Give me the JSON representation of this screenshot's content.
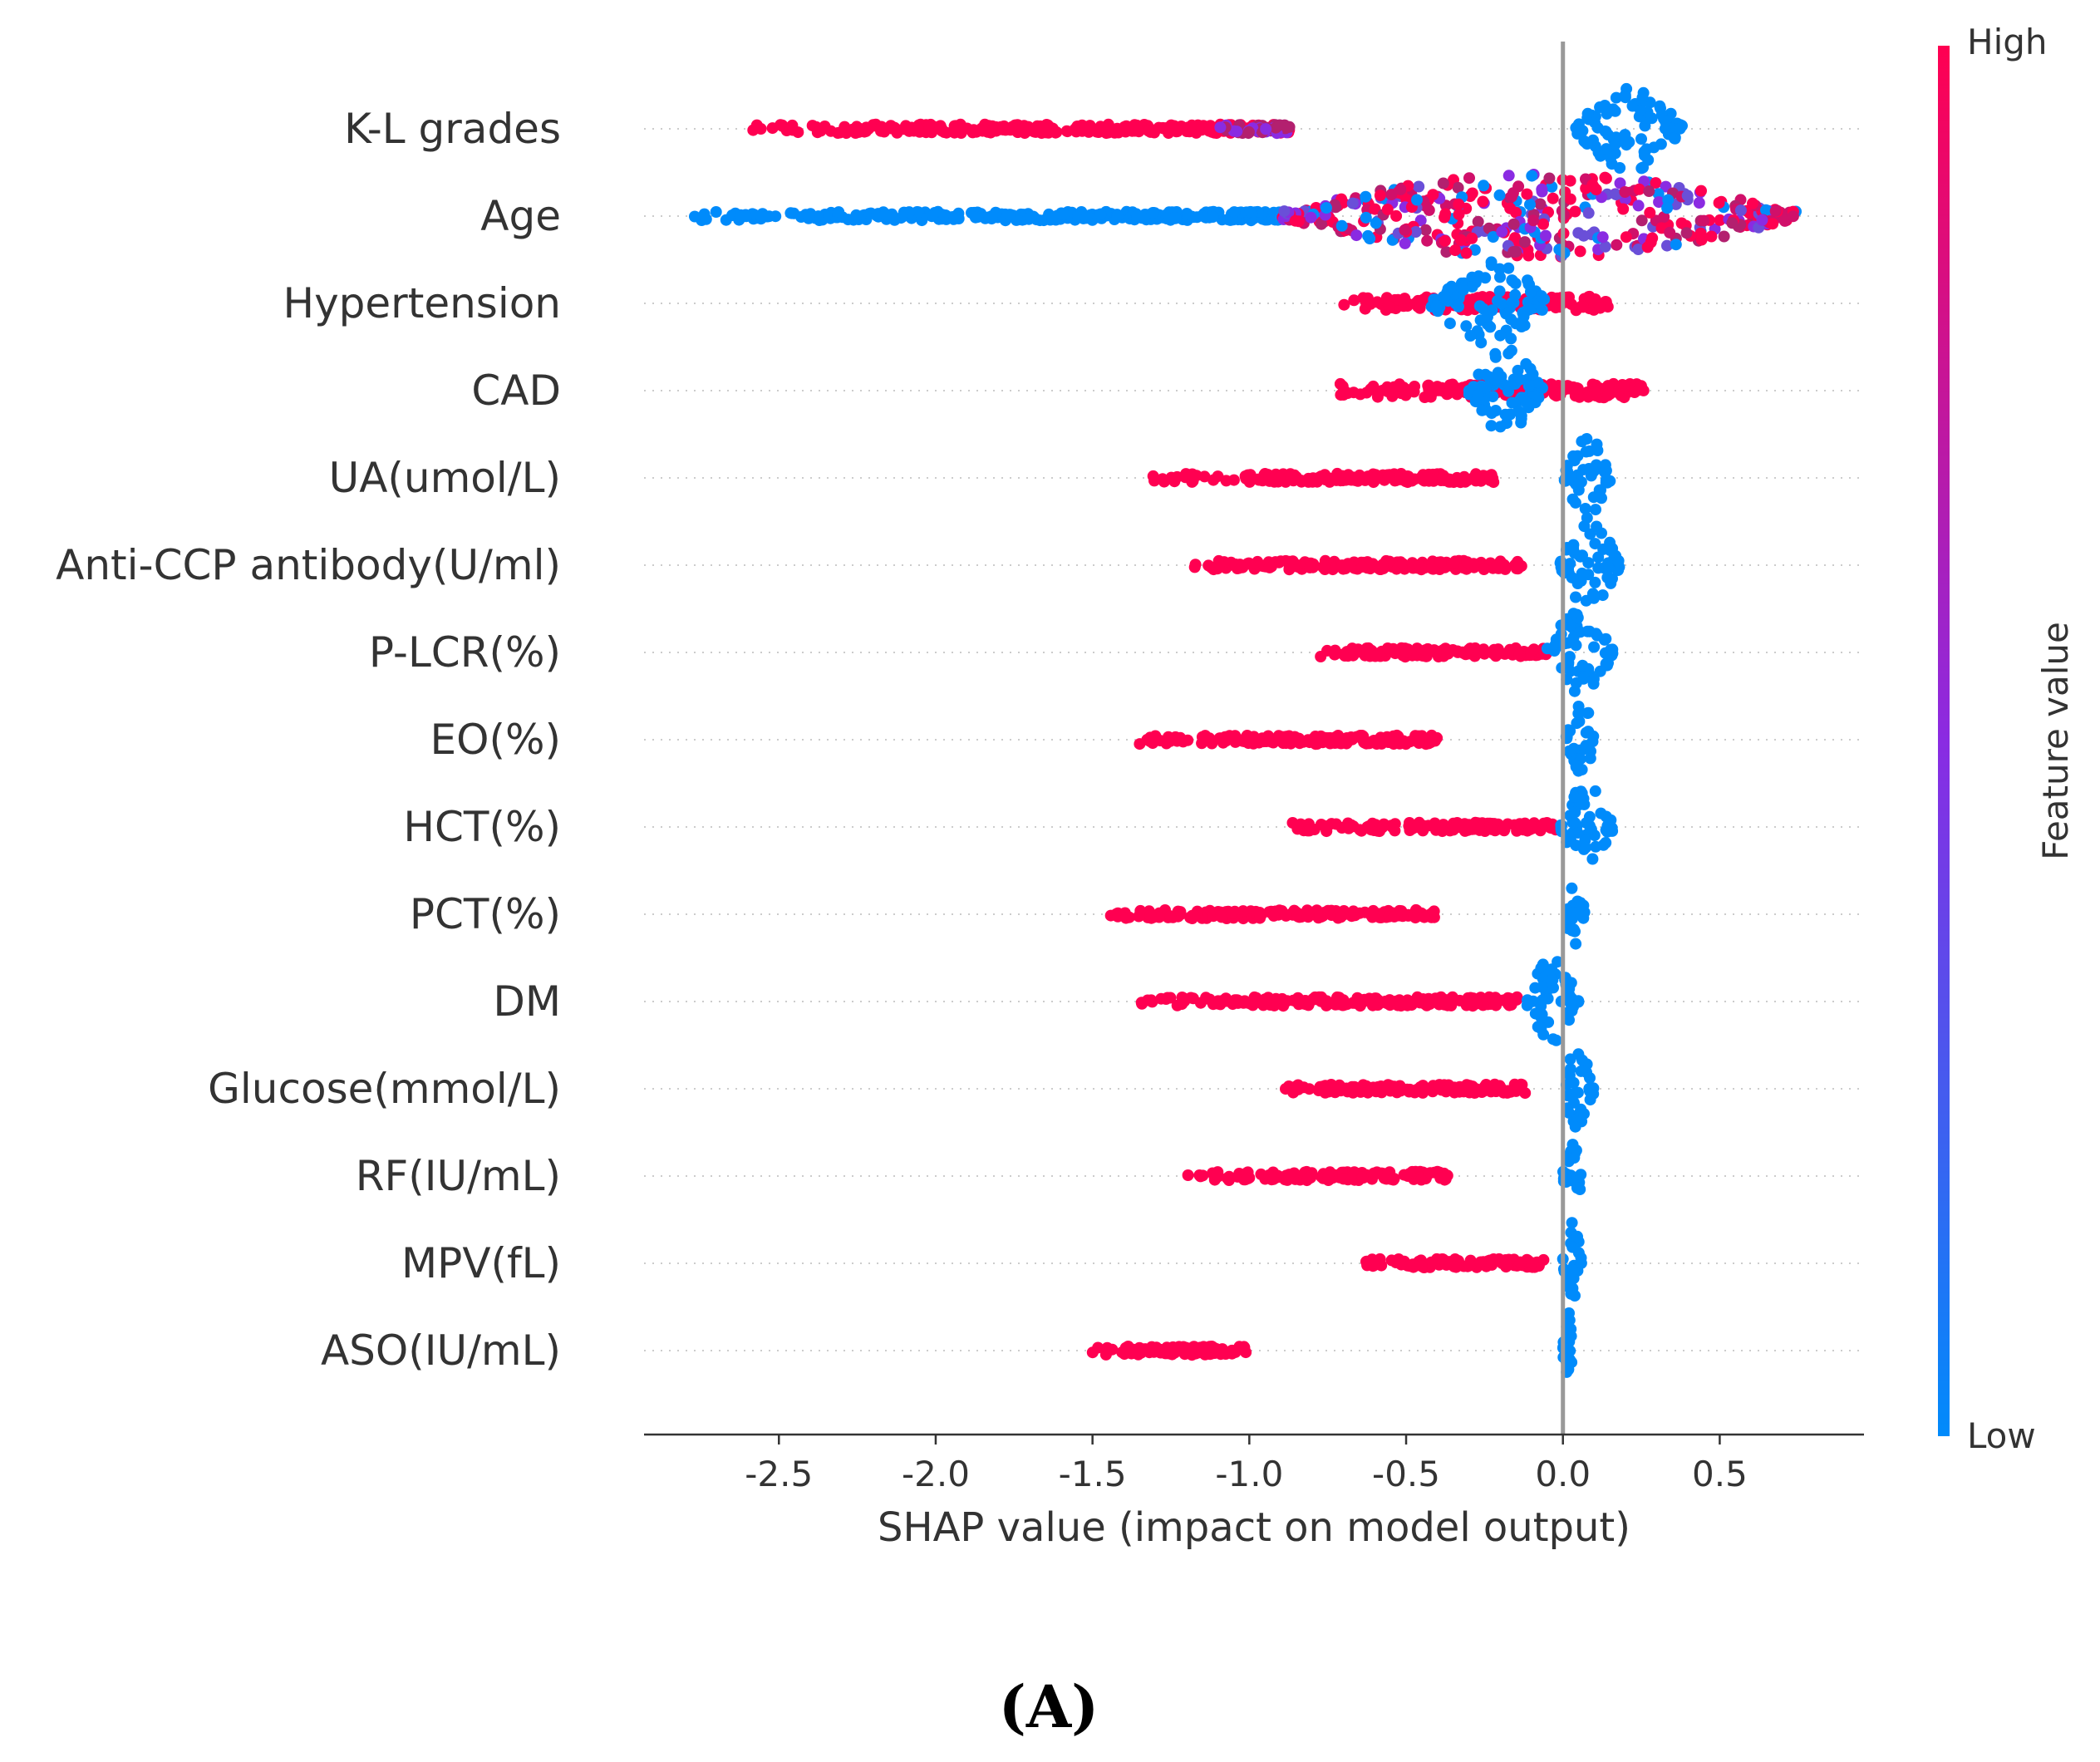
{
  "chart_data": {
    "type": "scatter",
    "subtype": "shap-beeswarm",
    "title": "",
    "xlabel": "SHAP value (impact on model output)",
    "ylabel": "",
    "xlim": [
      -2.93,
      0.96
    ],
    "xticks": [
      -2.5,
      -2.0,
      -1.5,
      -1.0,
      -0.5,
      0.0,
      0.5
    ],
    "xtick_labels": [
      "-2.5",
      "-2.0",
      "-1.5",
      "-1.0",
      "-0.5",
      "0.0",
      "0.5"
    ],
    "grid": false,
    "colorbar": {
      "title": "Feature value",
      "high_label": "High",
      "low_label": "Low",
      "high_color": "#ff0051",
      "mid_color": "#8a2be2",
      "low_color": "#008bfb"
    },
    "features": [
      {
        "name": "K-L grades",
        "points": [
          {
            "x_min": -2.6,
            "x_max": -0.87,
            "value": "high",
            "max_width": 0.05
          },
          {
            "x_min": -1.1,
            "x_max": -0.87,
            "value": "mid",
            "max_width": 0.05
          },
          {
            "x_min": 0.04,
            "x_max": 0.38,
            "value": "low",
            "max_width": 0.48
          }
        ]
      },
      {
        "name": "Age",
        "points": [
          {
            "x_min": -2.78,
            "x_max": -0.9,
            "value": "low",
            "max_width": 0.05
          },
          {
            "x_min": -0.9,
            "x_max": 0.75,
            "value": "mixed",
            "max_width": 0.48
          }
        ]
      },
      {
        "name": "Hypertension",
        "points": [
          {
            "x_min": -0.7,
            "x_max": 0.15,
            "value": "high",
            "max_width": 0.08
          },
          {
            "x_min": -0.42,
            "x_max": -0.05,
            "value": "low",
            "max_width": 0.48
          }
        ]
      },
      {
        "name": "CAD",
        "points": [
          {
            "x_min": -0.77,
            "x_max": 0.26,
            "value": "high",
            "max_width": 0.08
          },
          {
            "x_min": -0.3,
            "x_max": -0.06,
            "value": "low",
            "max_width": 0.48
          }
        ]
      },
      {
        "name": "UA(umol/L)",
        "points": [
          {
            "x_min": -1.32,
            "x_max": -0.22,
            "value": "high",
            "max_width": 0.05
          },
          {
            "x_min": 0.0,
            "x_max": 0.15,
            "value": "low",
            "max_width": 0.48
          }
        ]
      },
      {
        "name": "Anti-CCP antibody(U/ml)",
        "points": [
          {
            "x_min": -1.19,
            "x_max": -0.13,
            "value": "high",
            "max_width": 0.05
          },
          {
            "x_min": -0.01,
            "x_max": 0.18,
            "value": "low",
            "max_width": 0.48
          }
        ]
      },
      {
        "name": "P-LCR(%)",
        "points": [
          {
            "x_min": -0.78,
            "x_max": -0.05,
            "value": "high",
            "max_width": 0.05
          },
          {
            "x_min": -0.05,
            "x_max": 0.16,
            "value": "low",
            "max_width": 0.48
          }
        ]
      },
      {
        "name": "EO(%)",
        "points": [
          {
            "x_min": -1.37,
            "x_max": -0.4,
            "value": "high",
            "max_width": 0.05
          },
          {
            "x_min": 0.01,
            "x_max": 0.1,
            "value": "low",
            "max_width": 0.48
          }
        ]
      },
      {
        "name": "HCT(%)",
        "points": [
          {
            "x_min": -0.87,
            "x_max": -0.02,
            "value": "high",
            "max_width": 0.05
          },
          {
            "x_min": -0.01,
            "x_max": 0.16,
            "value": "low",
            "max_width": 0.48
          }
        ]
      },
      {
        "name": "PCT(%)",
        "points": [
          {
            "x_min": -1.46,
            "x_max": -0.41,
            "value": "high",
            "max_width": 0.05
          },
          {
            "x_min": 0.01,
            "x_max": 0.07,
            "value": "low",
            "max_width": 0.48
          }
        ]
      },
      {
        "name": "DM",
        "points": [
          {
            "x_min": -1.35,
            "x_max": -0.14,
            "value": "high",
            "max_width": 0.05
          },
          {
            "x_min": -0.12,
            "x_max": 0.05,
            "value": "low",
            "max_width": 0.48
          }
        ]
      },
      {
        "name": "Glucose(mmol/L)",
        "points": [
          {
            "x_min": -0.91,
            "x_max": -0.12,
            "value": "high",
            "max_width": 0.05
          },
          {
            "x_min": 0.0,
            "x_max": 0.1,
            "value": "low",
            "max_width": 0.48
          }
        ]
      },
      {
        "name": "RF(IU/mL)",
        "points": [
          {
            "x_min": -1.21,
            "x_max": -0.36,
            "value": "high",
            "max_width": 0.05
          },
          {
            "x_min": 0.0,
            "x_max": 0.06,
            "value": "low",
            "max_width": 0.48
          }
        ]
      },
      {
        "name": "MPV(fL)",
        "points": [
          {
            "x_min": -0.65,
            "x_max": -0.06,
            "value": "high",
            "max_width": 0.05
          },
          {
            "x_min": 0.0,
            "x_max": 0.06,
            "value": "low",
            "max_width": 0.48
          }
        ]
      },
      {
        "name": "ASO(IU/mL)",
        "points": [
          {
            "x_min": -1.5,
            "x_max": -1.01,
            "value": "high",
            "max_width": 0.05
          },
          {
            "x_min": 0.0,
            "x_max": 0.03,
            "value": "low",
            "max_width": 0.48
          }
        ]
      }
    ]
  },
  "panel_label": "(A)"
}
